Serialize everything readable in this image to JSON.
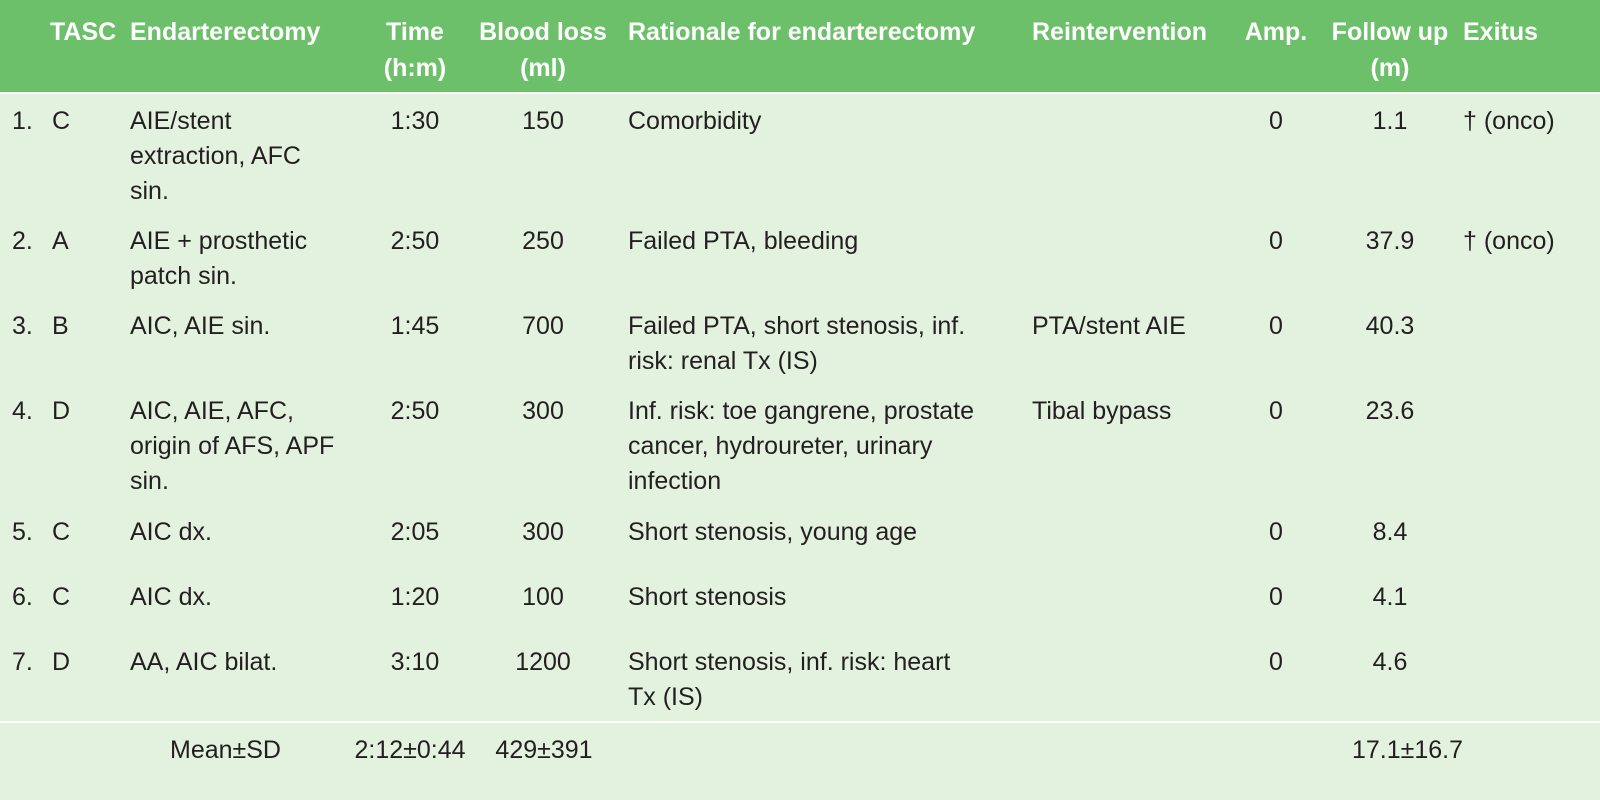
{
  "table": {
    "headers": {
      "index": "",
      "tasc": "TASC",
      "endarterectomy": "Endarterectomy",
      "time": [
        "Time",
        "(h:m)"
      ],
      "blood_loss": [
        "Blood loss",
        "(ml)"
      ],
      "rationale": "Rationale for endarterectomy",
      "reintervention": "Reintervention",
      "amp": "Amp.",
      "follow_up": [
        "Follow up",
        "(m)"
      ],
      "exitus": "Exitus"
    },
    "rows": [
      {
        "index": "1.",
        "tasc": "C",
        "endarterectomy": [
          "AIE/stent",
          "extraction, AFC",
          "sin."
        ],
        "time": "1:30",
        "blood_loss": "150",
        "rationale": [
          "Comorbidity"
        ],
        "reintervention": "",
        "amp": "0",
        "follow_up": "1.1",
        "exitus": "† (onco)"
      },
      {
        "index": "2.",
        "tasc": "A",
        "endarterectomy": [
          "AIE + prosthetic",
          "patch sin."
        ],
        "time": "2:50",
        "blood_loss": "250",
        "rationale": [
          "Failed PTA, bleeding"
        ],
        "reintervention": "",
        "amp": "0",
        "follow_up": "37.9",
        "exitus": "† (onco)"
      },
      {
        "index": "3.",
        "tasc": "B",
        "endarterectomy": [
          "AIC, AIE sin."
        ],
        "time": "1:45",
        "blood_loss": "700",
        "rationale": [
          "Failed PTA, short stenosis, inf.",
          "risk: renal Tx (IS)"
        ],
        "reintervention": "PTA/stent AIE",
        "amp": "0",
        "follow_up": "40.3",
        "exitus": ""
      },
      {
        "index": "4.",
        "tasc": "D",
        "endarterectomy": [
          "AIC, AIE, AFC,",
          "origin of AFS, APF",
          "sin."
        ],
        "time": "2:50",
        "blood_loss": "300",
        "rationale": [
          "Inf. risk: toe gangrene, prostate",
          "cancer, hydroureter, urinary",
          "infection"
        ],
        "reintervention": "Tibal bypass",
        "amp": "0",
        "follow_up": "23.6",
        "exitus": ""
      },
      {
        "index": "5.",
        "tasc": "C",
        "endarterectomy": [
          "AIC dx."
        ],
        "time": "2:05",
        "blood_loss": "300",
        "rationale": [
          "Short stenosis, young age"
        ],
        "reintervention": "",
        "amp": "0",
        "follow_up": "8.4",
        "exitus": ""
      },
      {
        "index": "6.",
        "tasc": "C",
        "endarterectomy": [
          "AIC dx."
        ],
        "time": "1:20",
        "blood_loss": "100",
        "rationale": [
          "Short stenosis"
        ],
        "reintervention": "",
        "amp": "0",
        "follow_up": "4.1",
        "exitus": ""
      },
      {
        "index": "7.",
        "tasc": "D",
        "endarterectomy": [
          "AA, AIC bilat."
        ],
        "time": "3:10",
        "blood_loss": "1200",
        "rationale": [
          "Short stenosis, inf. risk: heart",
          "Tx (IS)"
        ],
        "reintervention": "",
        "amp": "0",
        "follow_up": "4.6",
        "exitus": ""
      }
    ],
    "summary": {
      "label": "Mean±SD",
      "time": "2:12±0:44",
      "blood_loss": "429±391",
      "follow_up": "17.1±16.7"
    }
  },
  "colors": {
    "header_bg": "#6cc06a",
    "body_bg": "#e3f1df",
    "header_text": "#ffffff",
    "separator": "#ffffff"
  }
}
